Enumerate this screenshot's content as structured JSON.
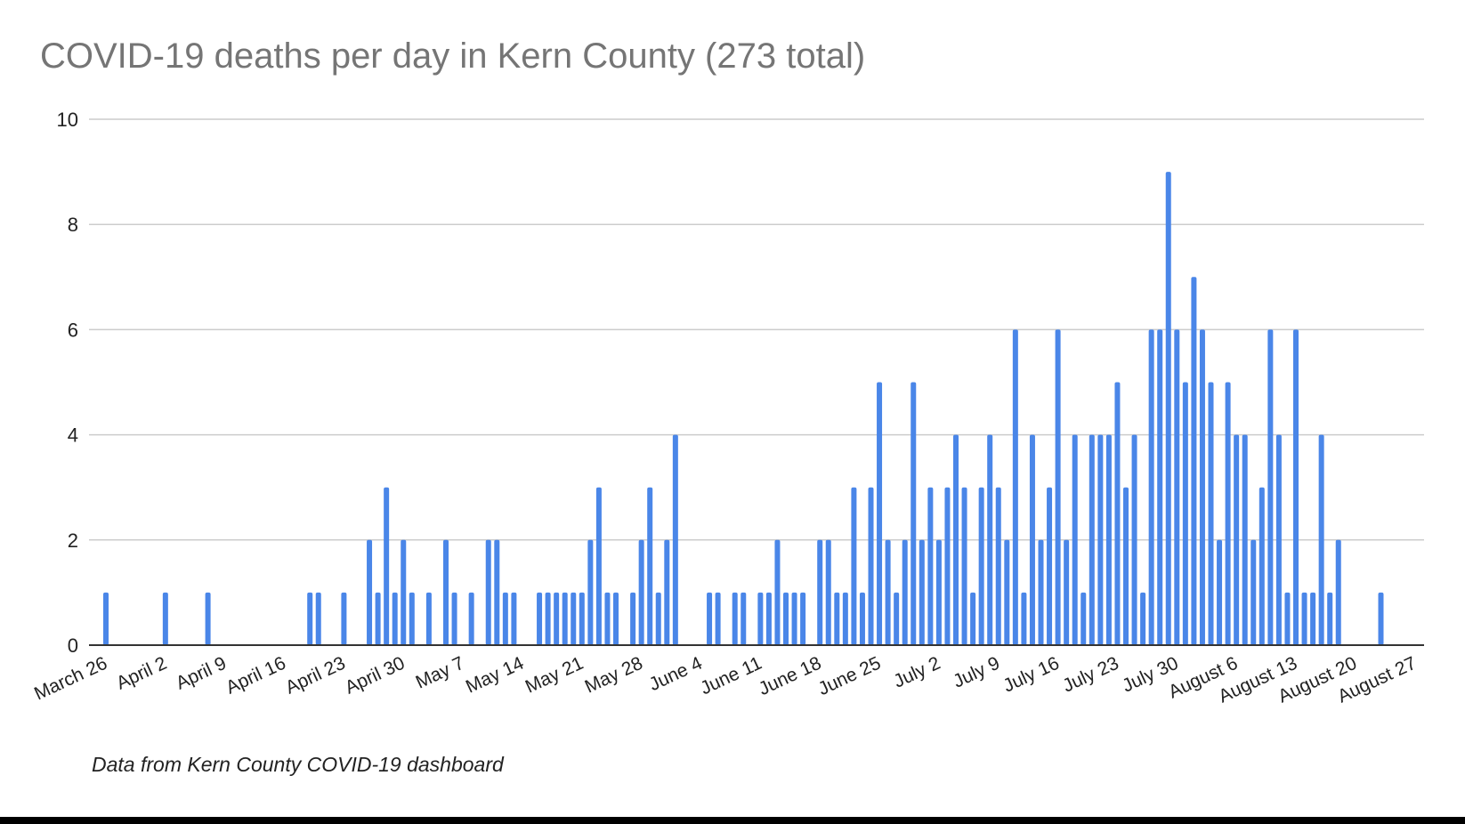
{
  "chart_data": {
    "type": "bar",
    "title": "COVID-19 deaths per day in Kern County (273 total)",
    "source_note": "Data from Kern County COVID-19 dashboard",
    "xlabel": "",
    "ylabel": "",
    "start_date": "March 26",
    "ylim": [
      0,
      10
    ],
    "y_ticks": [
      "0",
      "2",
      "4",
      "6",
      "8",
      "10"
    ],
    "x_tick_labels": [
      "March 26",
      "April 2",
      "April 9",
      "April 16",
      "April 23",
      "April 30",
      "May 7",
      "May 14",
      "May 21",
      "May 28",
      "June 4",
      "June 11",
      "June 18",
      "June 25",
      "July 2",
      "July 9",
      "July 16",
      "July 23",
      "July 30",
      "August 6",
      "August 13",
      "August 20",
      "August 27"
    ],
    "grid": true,
    "legend": "none",
    "bar_color": "#4a86e8",
    "values": [
      1,
      0,
      0,
      0,
      0,
      0,
      0,
      1,
      0,
      0,
      0,
      0,
      1,
      0,
      0,
      0,
      0,
      0,
      0,
      0,
      0,
      0,
      0,
      0,
      1,
      1,
      0,
      0,
      1,
      0,
      0,
      2,
      1,
      3,
      1,
      2,
      1,
      0,
      1,
      0,
      2,
      1,
      0,
      1,
      0,
      2,
      2,
      1,
      1,
      0,
      0,
      1,
      1,
      1,
      1,
      1,
      1,
      2,
      3,
      1,
      1,
      0,
      1,
      2,
      3,
      1,
      2,
      4,
      0,
      0,
      0,
      1,
      1,
      0,
      1,
      1,
      0,
      1,
      1,
      2,
      1,
      1,
      1,
      0,
      2,
      2,
      1,
      1,
      3,
      1,
      3,
      5,
      2,
      1,
      2,
      5,
      2,
      3,
      2,
      3,
      4,
      3,
      1,
      3,
      4,
      3,
      2,
      6,
      1,
      4,
      2,
      3,
      6,
      2,
      4,
      1,
      4,
      4,
      4,
      5,
      3,
      4,
      1,
      6,
      6,
      9,
      6,
      5,
      7,
      6,
      5,
      2,
      5,
      4,
      4,
      2,
      3,
      6,
      4,
      1,
      6,
      1,
      1,
      4,
      1,
      2,
      0,
      0,
      0,
      0,
      1
    ]
  }
}
